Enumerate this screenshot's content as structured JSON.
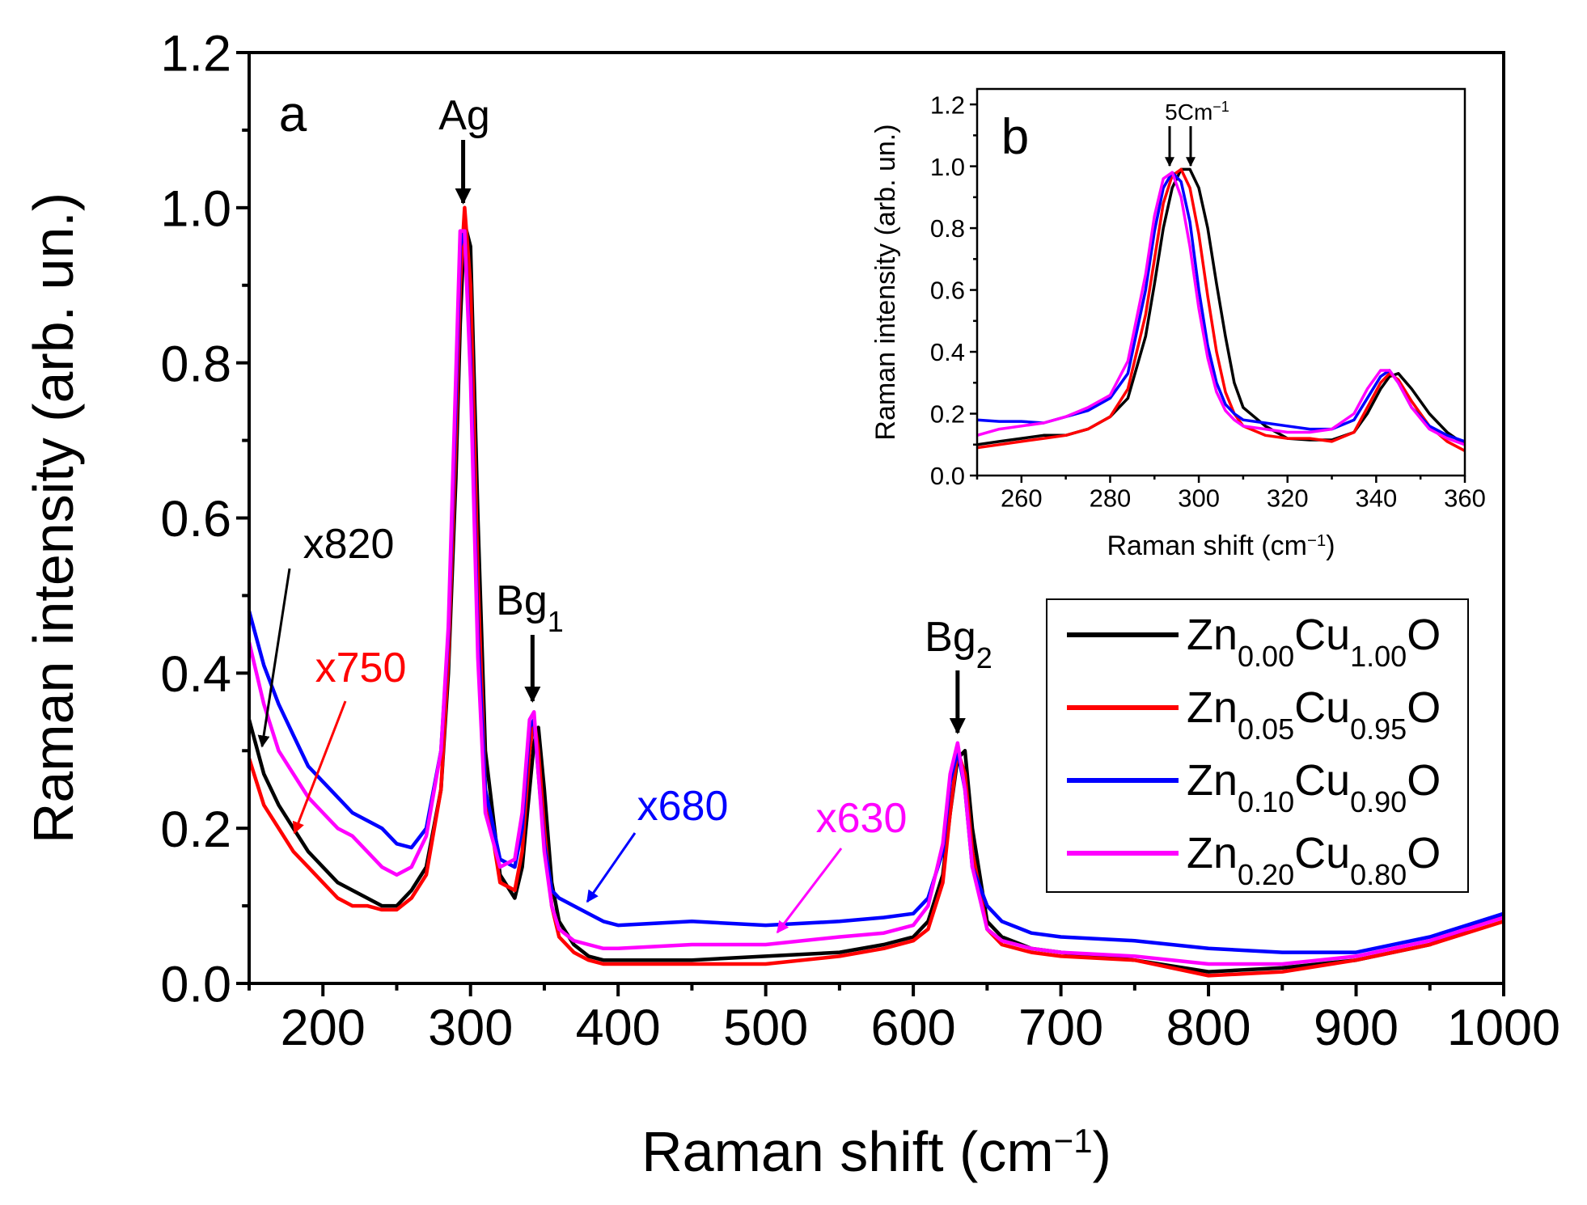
{
  "chart_data": [
    {
      "type": "line",
      "panel_label": "a",
      "xlabel": {
        "main": "Raman shift (cm",
        "sup": "−1",
        "end": ")"
      },
      "ylabel": "Raman intensity (arb. un.)",
      "xlim": [
        150,
        1000
      ],
      "ylim": [
        0,
        1.2
      ],
      "xticks": [
        200,
        300,
        400,
        500,
        600,
        700,
        800,
        900,
        1000
      ],
      "yticks": [
        "0.0",
        "0.2",
        "0.4",
        "0.6",
        "0.8",
        "1.0",
        "1.2"
      ],
      "grid": false,
      "legend_position": "center-right",
      "x": [
        150,
        160,
        170,
        180,
        190,
        200,
        210,
        220,
        230,
        240,
        250,
        260,
        270,
        280,
        285,
        290,
        293,
        296,
        300,
        305,
        310,
        320,
        330,
        335,
        340,
        343,
        346,
        350,
        355,
        360,
        370,
        380,
        390,
        400,
        450,
        500,
        550,
        580,
        600,
        610,
        620,
        625,
        630,
        635,
        640,
        650,
        660,
        680,
        700,
        750,
        800,
        850,
        900,
        950,
        1000
      ],
      "series": [
        {
          "name": "Zn0.00Cu1.00O",
          "color": "#000000",
          "label": {
            "el1": "Zn",
            "sub1": "0.00",
            "el2": "Cu",
            "sub2": "1.00",
            "el3": "O"
          },
          "values": [
            0.34,
            0.27,
            0.23,
            0.2,
            0.17,
            0.15,
            0.13,
            0.12,
            0.11,
            0.1,
            0.1,
            0.12,
            0.15,
            0.25,
            0.4,
            0.65,
            0.85,
            0.98,
            0.95,
            0.6,
            0.3,
            0.14,
            0.11,
            0.15,
            0.25,
            0.31,
            0.33,
            0.25,
            0.13,
            0.08,
            0.05,
            0.035,
            0.03,
            0.03,
            0.03,
            0.035,
            0.04,
            0.05,
            0.06,
            0.08,
            0.14,
            0.22,
            0.29,
            0.3,
            0.2,
            0.08,
            0.06,
            0.045,
            0.04,
            0.03,
            0.015,
            0.02,
            0.03,
            0.05,
            0.09
          ]
        },
        {
          "name": "Zn0.05Cu0.95O",
          "color": "#ff0000",
          "label": {
            "el1": "Zn",
            "sub1": "0.05",
            "el2": "Cu",
            "sub2": "0.95",
            "el3": "O"
          },
          "values": [
            0.29,
            0.23,
            0.2,
            0.17,
            0.15,
            0.13,
            0.11,
            0.1,
            0.1,
            0.095,
            0.095,
            0.11,
            0.14,
            0.25,
            0.42,
            0.7,
            0.9,
            1.0,
            0.9,
            0.52,
            0.25,
            0.13,
            0.12,
            0.17,
            0.3,
            0.34,
            0.3,
            0.2,
            0.1,
            0.06,
            0.04,
            0.03,
            0.025,
            0.025,
            0.025,
            0.025,
            0.035,
            0.045,
            0.055,
            0.07,
            0.13,
            0.22,
            0.3,
            0.27,
            0.17,
            0.07,
            0.05,
            0.04,
            0.035,
            0.03,
            0.01,
            0.015,
            0.03,
            0.05,
            0.08
          ]
        },
        {
          "name": "Zn0.10Cu0.90O",
          "color": "#0000ff",
          "label": {
            "el1": "Zn",
            "sub1": "0.10",
            "el2": "Cu",
            "sub2": "0.90",
            "el3": "O"
          },
          "values": [
            0.48,
            0.41,
            0.36,
            0.32,
            0.28,
            0.26,
            0.24,
            0.22,
            0.21,
            0.2,
            0.18,
            0.175,
            0.2,
            0.3,
            0.45,
            0.75,
            0.95,
            0.97,
            0.8,
            0.45,
            0.25,
            0.16,
            0.15,
            0.2,
            0.33,
            0.34,
            0.27,
            0.18,
            0.12,
            0.11,
            0.1,
            0.09,
            0.08,
            0.075,
            0.08,
            0.075,
            0.08,
            0.085,
            0.09,
            0.11,
            0.17,
            0.26,
            0.3,
            0.25,
            0.15,
            0.1,
            0.08,
            0.065,
            0.06,
            0.055,
            0.045,
            0.04,
            0.04,
            0.06,
            0.09
          ]
        },
        {
          "name": "Zn0.20Cu0.80O",
          "color": "#ff00ff",
          "label": {
            "el1": "Zn",
            "sub1": "0.20",
            "el2": "Cu",
            "sub2": "0.80",
            "el3": "O"
          },
          "values": [
            0.44,
            0.36,
            0.3,
            0.27,
            0.24,
            0.22,
            0.2,
            0.19,
            0.17,
            0.15,
            0.14,
            0.15,
            0.19,
            0.3,
            0.46,
            0.78,
            0.97,
            0.97,
            0.78,
            0.42,
            0.22,
            0.15,
            0.16,
            0.22,
            0.34,
            0.35,
            0.27,
            0.17,
            0.1,
            0.07,
            0.055,
            0.05,
            0.045,
            0.045,
            0.05,
            0.05,
            0.06,
            0.065,
            0.075,
            0.1,
            0.18,
            0.27,
            0.31,
            0.25,
            0.15,
            0.07,
            0.055,
            0.045,
            0.04,
            0.035,
            0.025,
            0.025,
            0.035,
            0.055,
            0.085
          ]
        }
      ],
      "annotations": {
        "peaks": [
          {
            "id": "ag",
            "text": "Ag",
            "sub": "",
            "x": 295
          },
          {
            "id": "bg1",
            "text": "Bg",
            "sub": "1",
            "x": 342
          },
          {
            "id": "bg2",
            "text": "Bg",
            "sub": "2",
            "x": 630
          }
        ],
        "scale_factors": [
          {
            "text": "x820",
            "color": "#000000"
          },
          {
            "text": "x750",
            "color": "#ff0000"
          },
          {
            "text": "x680",
            "color": "#0000ff"
          },
          {
            "text": "x630",
            "color": "#ff00ff"
          }
        ]
      }
    },
    {
      "type": "line",
      "panel_label": "b",
      "xlabel": {
        "main": "Raman shift (cm",
        "sup": "−1",
        "end": ")"
      },
      "ylabel": "Raman intensity (arb. un.)",
      "xlim": [
        250,
        360
      ],
      "ylim": [
        0,
        1.25
      ],
      "xticks": [
        260,
        280,
        300,
        320,
        340,
        360
      ],
      "yticks": [
        "0.0",
        "0.2",
        "0.4",
        "0.6",
        "0.8",
        "1.0",
        "1.2"
      ],
      "grid": false,
      "annotation": {
        "main": "5Cm",
        "sup": "−1"
      },
      "x": [
        250,
        255,
        260,
        265,
        270,
        275,
        280,
        284,
        288,
        290,
        292,
        294,
        296,
        298,
        300,
        302,
        304,
        306,
        308,
        310,
        315,
        320,
        325,
        330,
        335,
        338,
        341,
        343,
        345,
        348,
        352,
        356,
        360
      ],
      "series": [
        {
          "name": "Zn0.00Cu1.00O",
          "color": "#000000",
          "values": [
            0.1,
            0.11,
            0.12,
            0.13,
            0.13,
            0.15,
            0.19,
            0.25,
            0.45,
            0.62,
            0.8,
            0.93,
            0.99,
            0.99,
            0.93,
            0.8,
            0.62,
            0.45,
            0.3,
            0.22,
            0.16,
            0.12,
            0.115,
            0.115,
            0.14,
            0.2,
            0.28,
            0.32,
            0.33,
            0.28,
            0.2,
            0.14,
            0.1
          ]
        },
        {
          "name": "Zn0.05Cu0.95O",
          "color": "#ff0000",
          "values": [
            0.09,
            0.1,
            0.11,
            0.12,
            0.13,
            0.15,
            0.19,
            0.28,
            0.52,
            0.7,
            0.88,
            0.97,
            0.99,
            0.93,
            0.78,
            0.58,
            0.4,
            0.27,
            0.2,
            0.16,
            0.13,
            0.12,
            0.12,
            0.11,
            0.14,
            0.22,
            0.3,
            0.33,
            0.31,
            0.24,
            0.16,
            0.11,
            0.08
          ]
        },
        {
          "name": "Zn0.10Cu0.90O",
          "color": "#0000ff",
          "values": [
            0.18,
            0.175,
            0.175,
            0.17,
            0.19,
            0.21,
            0.25,
            0.33,
            0.6,
            0.79,
            0.93,
            0.98,
            0.95,
            0.82,
            0.6,
            0.42,
            0.3,
            0.23,
            0.2,
            0.18,
            0.17,
            0.16,
            0.15,
            0.15,
            0.18,
            0.25,
            0.32,
            0.34,
            0.3,
            0.22,
            0.16,
            0.13,
            0.11
          ]
        },
        {
          "name": "Zn0.20Cu0.80O",
          "color": "#ff00ff",
          "values": [
            0.13,
            0.15,
            0.16,
            0.17,
            0.19,
            0.22,
            0.26,
            0.37,
            0.65,
            0.84,
            0.96,
            0.98,
            0.9,
            0.74,
            0.54,
            0.38,
            0.27,
            0.21,
            0.18,
            0.16,
            0.15,
            0.14,
            0.14,
            0.15,
            0.2,
            0.28,
            0.34,
            0.34,
            0.3,
            0.22,
            0.15,
            0.12,
            0.1
          ]
        }
      ]
    }
  ]
}
